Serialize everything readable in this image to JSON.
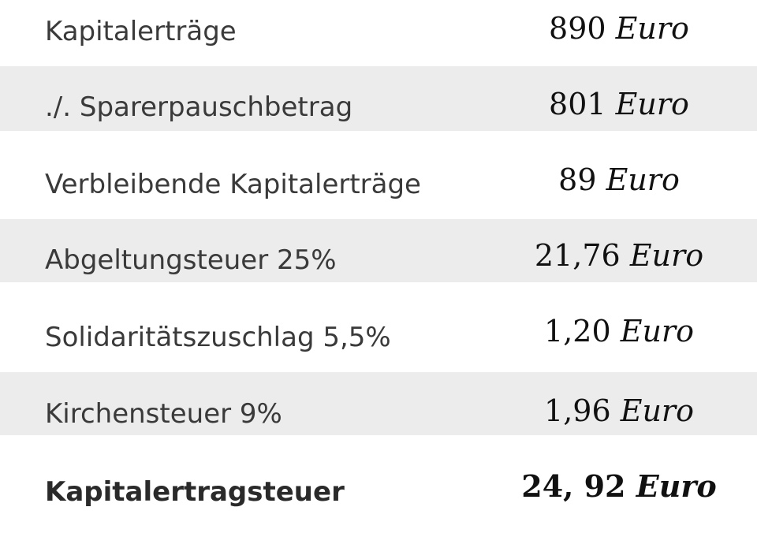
{
  "rows": [
    {
      "label": "Kapitalerträge",
      "amount": "890",
      "unit": "Euro"
    },
    {
      "label": "./. Sparerpauschbetrag",
      "amount": "801",
      "unit": "Euro"
    },
    {
      "label": "Verbleibende Kapitalerträge",
      "amount": "89",
      "unit": "Euro"
    },
    {
      "label": "Abgeltungsteuer 25%",
      "amount": "21,76",
      "unit": "Euro"
    },
    {
      "label": "Solidaritätszuschlag 5,5%",
      "amount": "1,20",
      "unit": "Euro"
    },
    {
      "label": "Kirchensteuer 9%",
      "amount": "1,96",
      "unit": "Euro"
    },
    {
      "label": "Kapitalertragsteuer",
      "amount": "24, 92",
      "unit": "Euro"
    }
  ],
  "colors": {
    "background": "#ffffff",
    "shaded_row": "#ececec",
    "label_text": "#3a3a3a",
    "value_text": "#111111"
  }
}
